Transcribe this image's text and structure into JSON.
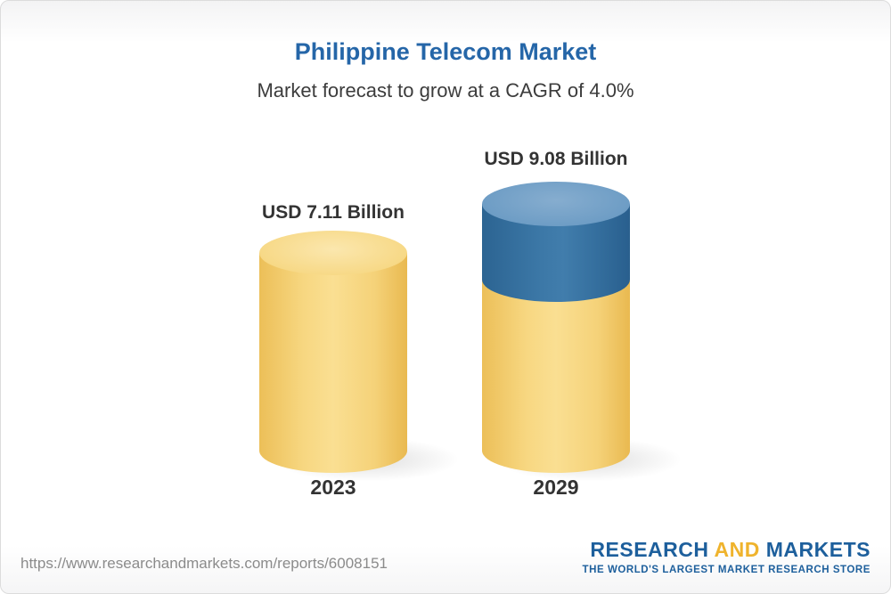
{
  "header": {
    "title": "Philippine Telecom Market",
    "subtitle": "Market forecast to grow at a CAGR of 4.0%"
  },
  "chart_data": {
    "type": "bar",
    "title": "Philippine Telecom Market",
    "subtitle": "Market forecast to grow at a CAGR of 4.0%",
    "cagr_percent": 4.0,
    "categories": [
      "2023",
      "2029"
    ],
    "values": [
      7.11,
      9.08
    ],
    "value_labels": [
      "USD 7.11 Billion",
      "USD 9.08 Billion"
    ],
    "unit": "USD Billion",
    "legend_position": "none",
    "grid": false,
    "colors": {
      "base_segment": "#f5cf6b",
      "growth_segment": "#39719f"
    },
    "notes": "Cylinder bars; 2029 bar shows the growth above the 2023 base as a blue top segment"
  },
  "bars": [
    {
      "year": "2023",
      "value_label": "USD 7.11 Billion"
    },
    {
      "year": "2029",
      "value_label": "USD 9.08 Billion"
    }
  ],
  "footer": {
    "url": "https://www.researchandmarkets.com/reports/6008151",
    "logo": {
      "word_research": "RESEARCH",
      "word_and": "AND",
      "word_markets": "MARKETS",
      "tagline": "THE WORLD'S LARGEST MARKET RESEARCH STORE"
    }
  }
}
